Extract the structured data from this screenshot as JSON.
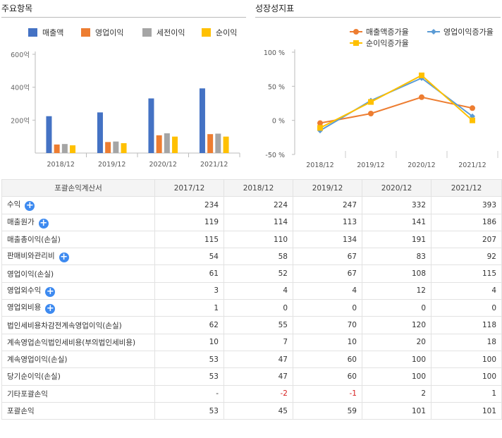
{
  "left_panel": {
    "title": "주요항목"
  },
  "right_panel": {
    "title": "성장성지표"
  },
  "chart_data": [
    {
      "type": "bar",
      "title": "주요항목",
      "categories": [
        "2018/12",
        "2019/12",
        "2020/12",
        "2021/12"
      ],
      "series": [
        {
          "name": "매출액",
          "color": "#4472c4",
          "values": [
            224,
            247,
            332,
            393
          ]
        },
        {
          "name": "영업이익",
          "color": "#ed7d31",
          "values": [
            52,
            67,
            108,
            115
          ]
        },
        {
          "name": "세전이익",
          "color": "#a5a5a5",
          "values": [
            55,
            70,
            120,
            118
          ]
        },
        {
          "name": "순이익",
          "color": "#ffc000",
          "values": [
            47,
            60,
            100,
            100
          ]
        }
      ],
      "yticks": [
        "200억",
        "400억",
        "600억"
      ],
      "ytick_values": [
        200,
        400,
        600
      ],
      "ylim": [
        0,
        620
      ],
      "legend": "top"
    },
    {
      "type": "line",
      "title": "성장성지표",
      "categories": [
        "2018/12",
        "2019/12",
        "2020/12",
        "2021/12"
      ],
      "series": [
        {
          "name": "매출액증가율",
          "color": "#ed7d31",
          "marker": "circle",
          "values": [
            -4,
            10,
            34,
            18
          ]
        },
        {
          "name": "영업이익증가율",
          "color": "#5b9bd5",
          "marker": "diamond",
          "values": [
            -15,
            29,
            62,
            6
          ]
        },
        {
          "name": "순이익증가율",
          "color": "#ffc000",
          "marker": "square",
          "values": [
            -11,
            27,
            66,
            0
          ]
        }
      ],
      "yticks": [
        "100 %",
        "50 %",
        "0 %",
        "-50 %"
      ],
      "ytick_values": [
        100,
        50,
        0,
        -50
      ],
      "ylim": [
        -50,
        100
      ],
      "legend": "top"
    }
  ],
  "table": {
    "headers": [
      "포괄손익계산서",
      "2017/12",
      "2018/12",
      "2019/12",
      "2020/12",
      "2021/12"
    ],
    "rows": [
      {
        "label": "수익",
        "expand": true,
        "values": [
          "234",
          "224",
          "247",
          "332",
          "393"
        ]
      },
      {
        "label": "매출원가",
        "expand": true,
        "values": [
          "119",
          "114",
          "113",
          "141",
          "186"
        ]
      },
      {
        "label": "매출총이익(손실)",
        "expand": false,
        "values": [
          "115",
          "110",
          "134",
          "191",
          "207"
        ]
      },
      {
        "label": "판매비와관리비",
        "expand": true,
        "values": [
          "54",
          "58",
          "67",
          "83",
          "92"
        ]
      },
      {
        "label": "영업이익(손실)",
        "expand": false,
        "values": [
          "61",
          "52",
          "67",
          "108",
          "115"
        ]
      },
      {
        "label": "영업외수익",
        "expand": true,
        "values": [
          "3",
          "4",
          "4",
          "12",
          "4"
        ]
      },
      {
        "label": "영업외비용",
        "expand": true,
        "values": [
          "1",
          "0",
          "0",
          "0",
          "0"
        ]
      },
      {
        "label": "법인세비용차감전계속영업이익(손실)",
        "expand": false,
        "values": [
          "62",
          "55",
          "70",
          "120",
          "118"
        ]
      },
      {
        "label": "계속영업손익법인세비용(부의법인세비용)",
        "expand": false,
        "values": [
          "10",
          "7",
          "10",
          "20",
          "18"
        ]
      },
      {
        "label": "계속영업이익(손실)",
        "expand": false,
        "values": [
          "53",
          "47",
          "60",
          "100",
          "100"
        ]
      },
      {
        "label": "당기순이익(손실)",
        "expand": false,
        "values": [
          "53",
          "47",
          "60",
          "100",
          "100"
        ]
      },
      {
        "label": "기타포괄손익",
        "expand": false,
        "values": [
          "-",
          "-2",
          "-1",
          "2",
          "1"
        ]
      },
      {
        "label": "포괄손익",
        "expand": false,
        "values": [
          "53",
          "45",
          "59",
          "101",
          "101"
        ]
      }
    ]
  }
}
